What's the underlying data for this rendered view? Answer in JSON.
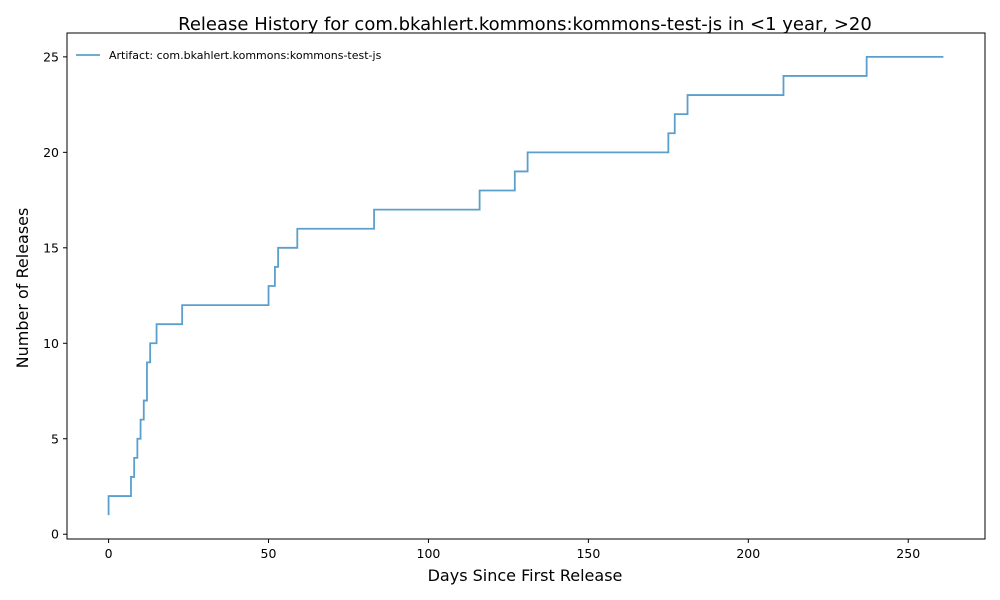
{
  "chart_data": {
    "type": "line",
    "step": "post",
    "title": "Release History for com.bkahlert.kommons:kommons-test-js in <1 year, >20",
    "xlabel": "Days Since First Release",
    "ylabel": "Number of Releases",
    "xlim": [
      -13,
      274
    ],
    "ylim": [
      -0.25,
      26.25
    ],
    "xticks": [
      0,
      50,
      100,
      150,
      200,
      250
    ],
    "yticks": [
      0,
      5,
      10,
      15,
      20,
      25
    ],
    "legend": "top-left",
    "grid": false,
    "series": [
      {
        "name": "Artifact: com.bkahlert.kommons:kommons-test-js",
        "color": "#5b9fcc",
        "points": [
          [
            0,
            1
          ],
          [
            0,
            2
          ],
          [
            7,
            3
          ],
          [
            8,
            4
          ],
          [
            9,
            5
          ],
          [
            10,
            6
          ],
          [
            11,
            7
          ],
          [
            12,
            8
          ],
          [
            12,
            9
          ],
          [
            13,
            10
          ],
          [
            15,
            11
          ],
          [
            23,
            12
          ],
          [
            50,
            13
          ],
          [
            52,
            14
          ],
          [
            53,
            15
          ],
          [
            59,
            16
          ],
          [
            83,
            17
          ],
          [
            116,
            18
          ],
          [
            127,
            19
          ],
          [
            131,
            20
          ],
          [
            175,
            21
          ],
          [
            177,
            22
          ],
          [
            181,
            23
          ],
          [
            211,
            24
          ],
          [
            237,
            25
          ],
          [
            261,
            25
          ]
        ]
      }
    ]
  }
}
